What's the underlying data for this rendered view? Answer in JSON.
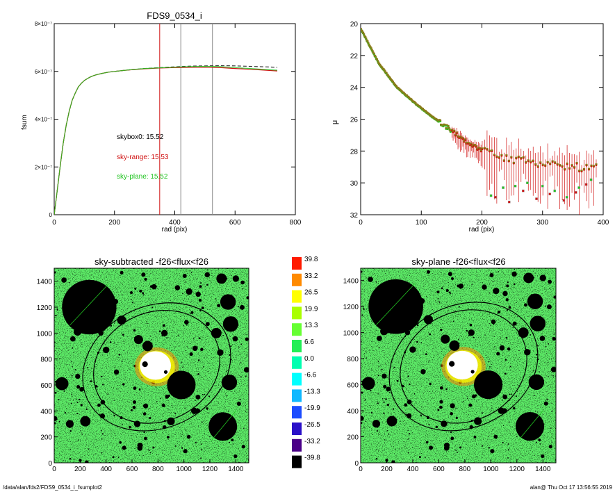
{
  "footer": {
    "path": "/data/alan/fds2/FDS9_0534_i_fsumplot2",
    "stamp": "alan@  Thu Oct 17 13:56:55 2019"
  },
  "colors": {
    "black": "#000000",
    "red": "#d01010",
    "green": "#22c422",
    "olive": "#8a7a18",
    "marker_grey": "#999999"
  },
  "chart_data": [
    {
      "type": "line",
      "title": "FDS9_0534_i",
      "xlabel": "rad (pix)",
      "ylabel": "fsum",
      "xlim": [
        0,
        800
      ],
      "ylim": [
        0,
        8e-07
      ],
      "xticks": [
        "0",
        "200",
        "400",
        "600",
        "800"
      ],
      "yticks": [
        "0",
        "2×10⁻⁷",
        "4×10⁻⁷",
        "6×10⁻⁷",
        "8×10⁻⁷"
      ],
      "ytick_values": [
        0,
        2e-07,
        4e-07,
        6e-07,
        8e-07
      ],
      "x": [
        0,
        10,
        20,
        30,
        40,
        50,
        60,
        70,
        80,
        90,
        100,
        110,
        120,
        130,
        140,
        160,
        180,
        200,
        230,
        260,
        300,
        350,
        400,
        450,
        500,
        550,
        600,
        650,
        700,
        740
      ],
      "series": [
        {
          "style": "dashed",
          "values": [
            0,
            1e-07,
            2.05e-07,
            3e-07,
            3.75e-07,
            4.35e-07,
            4.8e-07,
            5.1e-07,
            5.35e-07,
            5.5e-07,
            5.62e-07,
            5.7e-07,
            5.77e-07,
            5.82e-07,
            5.86e-07,
            5.92e-07,
            5.97e-07,
            6e-07,
            6.04e-07,
            6.08e-07,
            6.12e-07,
            6.16e-07,
            6.19e-07,
            6.22e-07,
            6.23e-07,
            6.24e-07,
            6.23e-07,
            6.21e-07,
            6.19e-07,
            6.17e-07
          ]
        },
        {
          "style": "red",
          "values": [
            0,
            1e-07,
            2.05e-07,
            3e-07,
            3.75e-07,
            4.35e-07,
            4.8e-07,
            5.1e-07,
            5.35e-07,
            5.5e-07,
            5.62e-07,
            5.7e-07,
            5.77e-07,
            5.82e-07,
            5.86e-07,
            5.92e-07,
            5.97e-07,
            6e-07,
            6.04e-07,
            6.07e-07,
            6.11e-07,
            6.14e-07,
            6.16e-07,
            6.17e-07,
            6.18e-07,
            6.16e-07,
            6.12e-07,
            6.09e-07,
            6.05e-07,
            6.02e-07
          ]
        },
        {
          "style": "green",
          "values": [
            0,
            1e-07,
            2.05e-07,
            3e-07,
            3.75e-07,
            4.35e-07,
            4.8e-07,
            5.1e-07,
            5.35e-07,
            5.5e-07,
            5.62e-07,
            5.7e-07,
            5.77e-07,
            5.82e-07,
            5.86e-07,
            5.92e-07,
            5.97e-07,
            6e-07,
            6.04e-07,
            6.08e-07,
            6.12e-07,
            6.15e-07,
            6.18e-07,
            6.2e-07,
            6.21e-07,
            6.2e-07,
            6.16e-07,
            6.12e-07,
            6.08e-07,
            6.05e-07
          ]
        }
      ],
      "vlines": [
        {
          "x": 350,
          "color": "red"
        },
        {
          "x": 420,
          "color": "grey"
        },
        {
          "x": 525,
          "color": "grey"
        }
      ],
      "annotations": [
        {
          "label": "skybox0: 15.52",
          "color": "black"
        },
        {
          "label": "sky-range: 15.53",
          "color": "red"
        },
        {
          "label": "sky-plane: 15.52",
          "color": "green"
        }
      ]
    },
    {
      "type": "scatter",
      "title": "",
      "xlabel": "rad (pix)",
      "ylabel": "μ",
      "xlim": [
        0,
        400
      ],
      "ylim": [
        32,
        20
      ],
      "xticks": [
        "0",
        "100",
        "200",
        "300",
        "400"
      ],
      "yticks": [
        "20",
        "22",
        "24",
        "26",
        "28",
        "30",
        "32"
      ],
      "ytick_values": [
        20,
        22,
        24,
        26,
        28,
        30,
        32
      ],
      "profile_start": [
        0,
        20.3
      ],
      "profile_knots": [
        [
          30,
          22.5
        ],
        [
          60,
          24.0
        ],
        [
          90,
          25.0
        ],
        [
          120,
          25.9
        ],
        [
          150,
          26.7
        ],
        [
          170,
          27.3
        ],
        [
          200,
          28.0
        ],
        [
          250,
          28.5
        ],
        [
          300,
          28.8
        ],
        [
          390,
          29.1
        ]
      ],
      "outliers_green": [
        [
          215,
          30.8
        ],
        [
          235,
          30.3
        ],
        [
          255,
          30.2
        ],
        [
          275,
          30.0
        ],
        [
          300,
          30.2
        ],
        [
          320,
          30.5
        ],
        [
          340,
          30.9
        ],
        [
          360,
          30.3
        ],
        [
          380,
          29.8
        ]
      ],
      "outliers_red": [
        [
          222,
          30.9
        ],
        [
          245,
          31.2
        ],
        [
          268,
          30.5
        ],
        [
          290,
          31.0
        ],
        [
          312,
          30.7
        ],
        [
          335,
          31.1
        ],
        [
          355,
          30.6
        ],
        [
          372,
          30.1
        ]
      ]
    },
    {
      "type": "heatmap",
      "title": "sky-subtracted -f26<flux<f26",
      "xticks": [
        "0",
        "200",
        "400",
        "600",
        "800",
        "1000",
        "1200",
        "1400"
      ],
      "yticks": [
        "0",
        "200",
        "400",
        "600",
        "800",
        "1000",
        "1200",
        "1400"
      ],
      "xlim": [
        0,
        1500
      ],
      "ylim": [
        0,
        1500
      ]
    },
    {
      "type": "heatmap",
      "title": "sky-plane -f26<flux<f26",
      "xticks": [
        "0",
        "200",
        "400",
        "600",
        "800",
        "1000",
        "1200",
        "1400"
      ],
      "yticks": [
        "0",
        "200",
        "400",
        "600",
        "800",
        "1000",
        "1200",
        "1400"
      ],
      "xlim": [
        0,
        1500
      ],
      "ylim": [
        0,
        1500
      ]
    }
  ],
  "colorbar": {
    "labels": [
      "39.8",
      "33.2",
      "26.5",
      "19.9",
      "13.3",
      "6.6",
      "0.0",
      "-6.6",
      "-13.3",
      "-19.9",
      "-26.5",
      "-33.2",
      "-39.8"
    ],
    "colors": [
      "#ff1a00",
      "#ff8a00",
      "#ffff00",
      "#aaff00",
      "#66ff33",
      "#22ee55",
      "#00ffb0",
      "#00ffff",
      "#10b8ff",
      "#1c4cff",
      "#2a10c8",
      "#4a0088",
      "#000000"
    ]
  },
  "image_masks": {
    "big_circles": [
      [
        270,
        1200,
        210
      ],
      [
        1300,
        280,
        110
      ],
      [
        980,
        600,
        110
      ],
      [
        60,
        610,
        50
      ],
      [
        1350,
        620,
        60
      ],
      [
        1340,
        1240,
        60
      ],
      [
        1360,
        1070,
        60
      ],
      [
        1290,
        1420,
        40
      ],
      [
        1250,
        1000,
        40
      ],
      [
        520,
        1100,
        35
      ],
      [
        650,
        950,
        35
      ],
      [
        720,
        900,
        40
      ],
      [
        180,
        1010,
        30
      ],
      [
        230,
        1060,
        25
      ],
      [
        250,
        1220,
        20
      ],
      [
        400,
        870,
        25
      ],
      [
        950,
        1350,
        20
      ],
      [
        1040,
        1320,
        25
      ],
      [
        1110,
        1300,
        20
      ],
      [
        850,
        1000,
        25
      ],
      [
        240,
        320,
        40
      ],
      [
        120,
        300,
        30
      ],
      [
        900,
        320,
        30
      ],
      [
        1080,
        400,
        25
      ],
      [
        1280,
        850,
        25
      ],
      [
        640,
        300,
        25
      ],
      [
        480,
        700,
        20
      ],
      [
        360,
        1000,
        20
      ],
      [
        1400,
        1420,
        25
      ],
      [
        1180,
        1450,
        20
      ]
    ],
    "rings": [
      [
        790,
        740,
        590,
        470
      ],
      [
        790,
        740,
        500,
        420
      ]
    ]
  }
}
